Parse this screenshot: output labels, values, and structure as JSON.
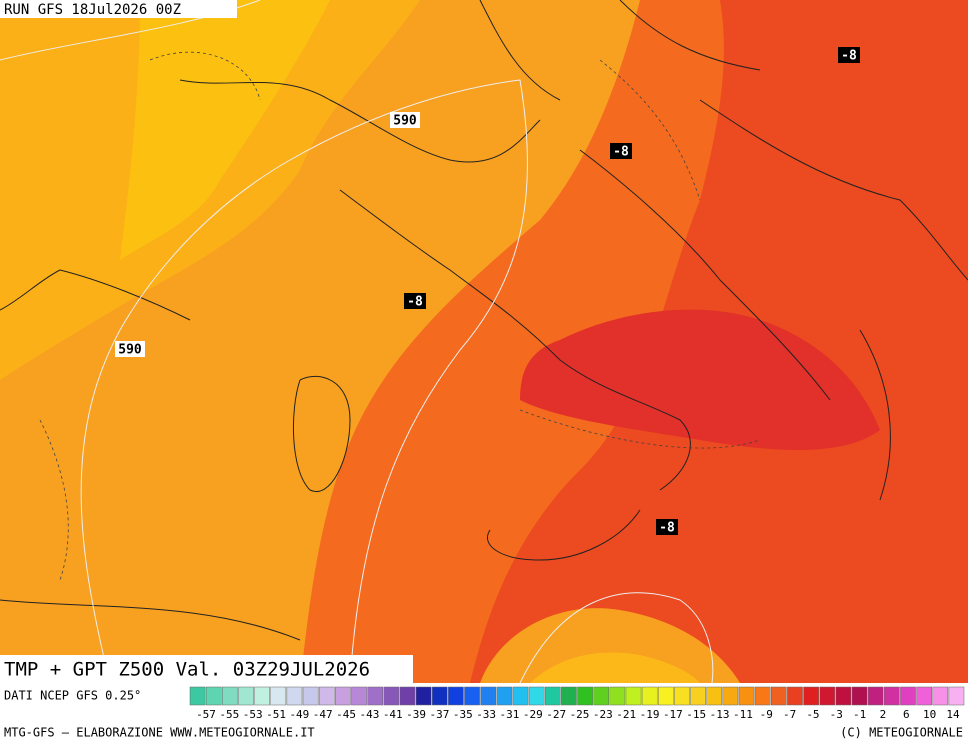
{
  "header": "RUN GFS 18Jul2026 00Z",
  "map_labels": [
    "-8",
    "-8",
    "-8",
    "-8",
    "590",
    "590"
  ],
  "title": "TMP + GPT Z500 Val. 03Z29JUL2026",
  "source": "DATI NCEP GFS 0.25°",
  "footer_left": "MTG-GFS – ELABORAZIONE WWW.METEOGIORNALE.IT",
  "footer_right": "(C) METEOGIORNALE",
  "colorbar": {
    "colors": [
      "#3cc8a0",
      "#5fd4b0",
      "#80dcc0",
      "#a0e6d0",
      "#c0f0e0",
      "#d8e8f0",
      "#d0d8f0",
      "#c8c8ec",
      "#d0b8e8",
      "#c8a0e0",
      "#b888d8",
      "#a070c8",
      "#8858b8",
      "#7040a8",
      "#2020a0",
      "#1030c0",
      "#1040e0",
      "#1860f0",
      "#2080f0",
      "#20a0f0",
      "#20c0f0",
      "#30d8e8",
      "#20c8a0",
      "#20b050",
      "#30c020",
      "#60d020",
      "#90e020",
      "#c0f020",
      "#e8f020",
      "#f8f020",
      "#f8e020",
      "#f8d020",
      "#f8c010",
      "#f8a810",
      "#f89010",
      "#f87818",
      "#f06020",
      "#e84020",
      "#e02020",
      "#d01830",
      "#c01040",
      "#b01050",
      "#c02080",
      "#d030a0",
      "#e040c0",
      "#f060d8",
      "#f890e8",
      "#f8b0f0"
    ],
    "labels": [
      "-57",
      "-55",
      "-53",
      "-51",
      "-49",
      "-47",
      "-45",
      "-43",
      "-41",
      "-39",
      "-37",
      "-35",
      "-33",
      "-31",
      "-29",
      "-27",
      "-25",
      "-23",
      "-21",
      "-19",
      "-17",
      "-15",
      "-13",
      "-11",
      "-9",
      "-7",
      "-5",
      "-3",
      "-1",
      "2",
      "6",
      "10",
      "14"
    ]
  }
}
